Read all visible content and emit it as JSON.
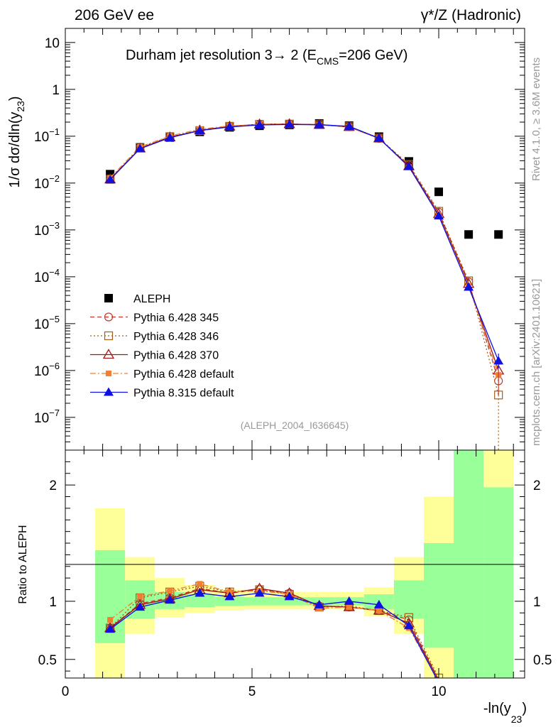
{
  "header": {
    "left": "206 GeV ee",
    "right": "γ*/Z (Hadronic)"
  },
  "side_labels": {
    "upper": "Rivet 4.1.0, ≥ 3.6M events",
    "lower": "mcplots.cern.ch [arXiv:2401.10621]"
  },
  "chart_data": [
    {
      "type": "scatter",
      "title": "Durham jet resolution 3→ 2 (E",
      "title_sub": "CMS",
      "title_end": "=206 GeV)",
      "ylabel": "1/σ  dσ/dln(y",
      "ylabel_sub": "23",
      "ylabel_end": ")",
      "yscale": "log",
      "ylim": [
        2e-08,
        20
      ],
      "xlim": [
        0,
        12.3
      ],
      "analysis_tag": "(ALEPH_2004_I636645)",
      "yticks": [
        {
          "v": 1e-07,
          "b": "10",
          "e": "−7"
        },
        {
          "v": 1e-06,
          "b": "10",
          "e": "−6"
        },
        {
          "v": 1e-05,
          "b": "10",
          "e": "−5"
        },
        {
          "v": 0.0001,
          "b": "10",
          "e": "−4"
        },
        {
          "v": 0.001,
          "b": "10",
          "e": "−3"
        },
        {
          "v": 0.01,
          "b": "10",
          "e": "−2"
        },
        {
          "v": 0.1,
          "b": "10",
          "e": "−1"
        },
        {
          "v": 1,
          "b": "1",
          "e": ""
        },
        {
          "v": 10,
          "b": "10",
          "e": ""
        }
      ],
      "x": [
        1.2,
        2.0,
        2.8,
        3.6,
        4.4,
        5.2,
        6.0,
        6.8,
        7.6,
        8.4,
        9.2,
        10.0,
        10.8,
        11.6
      ],
      "series": [
        {
          "name": "ALEPH",
          "marker": "square-filled",
          "color": "#000000",
          "line": "none",
          "values": [
            0.0155,
            0.057,
            0.094,
            0.124,
            0.155,
            0.167,
            0.174,
            0.187,
            0.168,
            0.098,
            0.029,
            0.0065,
            0.0008,
            0.0008
          ]
        },
        {
          "name": "Pythia 6.428 345",
          "marker": "circle-open",
          "color": "#c0392b",
          "line": "6,4",
          "values": [
            0.0122,
            0.056,
            0.095,
            0.13,
            0.161,
            0.178,
            0.18,
            0.178,
            0.159,
            0.09,
            0.0242,
            0.0024,
            7.8e-05,
            6e-07
          ]
        },
        {
          "name": "Pythia 6.428 346",
          "marker": "square-open",
          "color": "#a0601a",
          "line": "2,3",
          "values": [
            0.012,
            0.058,
            0.098,
            0.132,
            0.163,
            0.18,
            0.182,
            0.177,
            0.161,
            0.091,
            0.025,
            0.0025,
            8.2e-05,
            3e-07
          ]
        },
        {
          "name": "Pythia 6.428 370",
          "marker": "triangle-open",
          "color": "#a01818",
          "line": "none-solid",
          "values": [
            0.012,
            0.055,
            0.095,
            0.134,
            0.162,
            0.18,
            0.182,
            0.176,
            0.158,
            0.09,
            0.023,
            0.0022,
            7.1e-05,
            1e-06
          ]
        },
        {
          "name": "Pythia 6.428 default",
          "marker": "square-small-filled",
          "color": "#f08030",
          "line": "8,3,2,3",
          "values": [
            0.013,
            0.059,
            0.101,
            0.141,
            0.166,
            0.178,
            0.182,
            0.174,
            0.16,
            0.091,
            0.022,
            0.0021,
            6.5e-05,
            8e-07
          ]
        },
        {
          "name": "Pythia 8.315 default",
          "marker": "triangle-filled",
          "color": "#1010e0",
          "line": "none-solid",
          "values": [
            0.0118,
            0.054,
            0.093,
            0.132,
            0.158,
            0.174,
            0.178,
            0.176,
            0.163,
            0.091,
            0.0225,
            0.002,
            6e-05,
            1.6e-06
          ]
        }
      ],
      "legend": [
        "ALEPH",
        "Pythia 6.428 345",
        "Pythia 6.428 346",
        "Pythia 6.428 370",
        "Pythia 6.428 default",
        "Pythia 8.315 default"
      ],
      "legend_position": "bottom-left"
    },
    {
      "type": "scatter",
      "ylabel": "Ratio to ALEPH",
      "xlabel": "-ln(y",
      "xlabel_sub": "23",
      "xlabel_end": ")",
      "ylim": [
        0.34,
        2.3
      ],
      "xlim": [
        0,
        12.3
      ],
      "xticks": [
        {
          "v": 0,
          "label": "0"
        },
        {
          "v": 5,
          "label": "5"
        },
        {
          "v": 10,
          "label": "10"
        }
      ],
      "yticks": [
        {
          "v": 0.5,
          "label": "0.5"
        },
        {
          "v": 1,
          "label": "1"
        },
        {
          "v": 2,
          "label": "2"
        }
      ],
      "bands": [
        {
          "xlo": 0.8,
          "xhi": 1.6,
          "yellow": [
            0.2,
            1.8
          ],
          "green": [
            0.64,
            1.44
          ]
        },
        {
          "xlo": 1.6,
          "xhi": 2.4,
          "yellow": [
            0.72,
            1.38
          ],
          "green": [
            0.85,
            1.18
          ]
        },
        {
          "xlo": 2.4,
          "xhi": 3.2,
          "yellow": [
            0.86,
            1.2
          ],
          "green": [
            0.93,
            1.08
          ]
        },
        {
          "xlo": 3.2,
          "xhi": 4.0,
          "yellow": [
            0.9,
            1.14
          ],
          "green": [
            0.95,
            1.06
          ]
        },
        {
          "xlo": 4.0,
          "xhi": 4.8,
          "yellow": [
            0.92,
            1.1
          ],
          "green": [
            0.96,
            1.04
          ]
        },
        {
          "xlo": 4.8,
          "xhi": 5.6,
          "yellow": [
            0.93,
            1.08
          ],
          "green": [
            0.965,
            1.035
          ]
        },
        {
          "xlo": 5.6,
          "xhi": 6.4,
          "yellow": [
            0.93,
            1.08
          ],
          "green": [
            0.965,
            1.035
          ]
        },
        {
          "xlo": 6.4,
          "xhi": 7.2,
          "yellow": [
            0.93,
            1.08
          ],
          "green": [
            0.965,
            1.035
          ]
        },
        {
          "xlo": 7.2,
          "xhi": 8.0,
          "yellow": [
            0.93,
            1.08
          ],
          "green": [
            0.965,
            1.035
          ]
        },
        {
          "xlo": 8.0,
          "xhi": 8.8,
          "yellow": [
            0.87,
            1.12
          ],
          "green": [
            0.93,
            1.06
          ]
        },
        {
          "xlo": 8.8,
          "xhi": 9.6,
          "yellow": [
            0.72,
            1.38
          ],
          "green": [
            0.85,
            1.18
          ]
        },
        {
          "xlo": 9.6,
          "xhi": 10.4,
          "yellow": [
            0.3,
            1.9
          ],
          "green": [
            0.6,
            1.5
          ]
        },
        {
          "xlo": 10.4,
          "xhi": 11.2,
          "yellow": [
            0.3,
            2.4
          ],
          "green": [
            0.3,
            2.4
          ]
        },
        {
          "xlo": 11.2,
          "xhi": 12.0,
          "yellow": [
            0.3,
            2.4
          ],
          "green": [
            0.3,
            1.98
          ]
        }
      ],
      "x": [
        1.2,
        2.0,
        2.8,
        3.6,
        4.4,
        5.2,
        6.0,
        6.8,
        7.6,
        8.4,
        9.2,
        10.0
      ],
      "series": [
        {
          "name": "Pythia 6.428 345",
          "values": [
            0.77,
            0.98,
            1.03,
            1.11,
            1.07,
            1.1,
            1.07,
            0.96,
            0.95,
            0.92,
            0.84,
            0.32
          ]
        },
        {
          "name": "Pythia 6.428 346",
          "values": [
            0.77,
            1.03,
            1.08,
            1.13,
            1.08,
            1.1,
            1.06,
            0.95,
            0.96,
            0.92,
            0.86,
            0.34
          ]
        },
        {
          "name": "Pythia 6.428 370",
          "values": [
            0.77,
            0.97,
            1.02,
            1.1,
            1.07,
            1.11,
            1.07,
            0.96,
            0.95,
            0.92,
            0.81,
            0.32
          ]
        },
        {
          "name": "Pythia 6.428 default",
          "values": [
            0.84,
            1.04,
            1.09,
            1.15,
            1.08,
            1.09,
            1.06,
            0.94,
            0.95,
            0.92,
            0.77,
            0.31
          ]
        },
        {
          "name": "Pythia 8.315 default",
          "values": [
            0.76,
            0.95,
            1.01,
            1.07,
            1.04,
            1.07,
            1.04,
            0.97,
            1.0,
            0.97,
            0.79,
            0.3
          ]
        }
      ]
    }
  ]
}
